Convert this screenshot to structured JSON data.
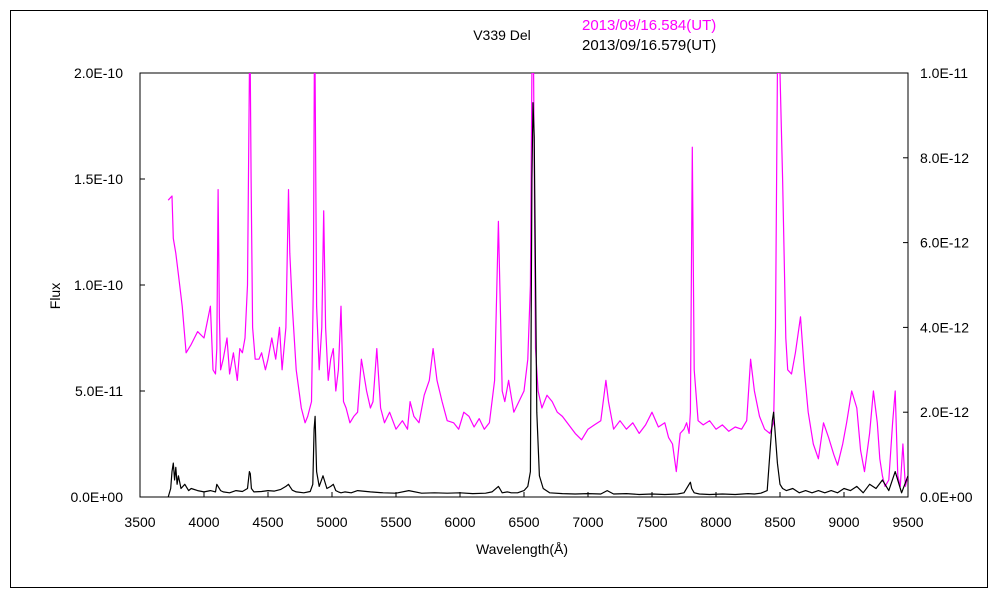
{
  "chart_data": {
    "type": "line",
    "title": "V339 Del",
    "xlabel": "Wavelength(Å)",
    "ylabel": "Flux",
    "xlim": [
      3500,
      9500
    ],
    "ylim_left": [
      0,
      2e-10
    ],
    "ylim_right": [
      0,
      1e-11
    ],
    "x_ticks": [
      "3500",
      "4000",
      "4500",
      "5000",
      "5500",
      "6000",
      "6500",
      "7000",
      "7500",
      "8000",
      "8500",
      "9000",
      "9500"
    ],
    "y_left_ticks": [
      "0.0E+00",
      "5.0E-11",
      "1.0E-10",
      "1.5E-10",
      "2.0E-10"
    ],
    "y_right_ticks": [
      "0.0E+00",
      "2.0E-12",
      "4.0E-12",
      "6.0E-12",
      "8.0E-12",
      "1.0E-11"
    ],
    "grid": false,
    "legend_position": "top",
    "series": [
      {
        "name": "2013/09/16.584(UT)",
        "axis": "left",
        "color": "#ff00ff",
        "x": [
          3720,
          3750,
          3760,
          3780,
          3800,
          3830,
          3860,
          3900,
          3950,
          4000,
          4050,
          4070,
          4090,
          4100,
          4110,
          4120,
          4130,
          4150,
          4180,
          4200,
          4230,
          4260,
          4280,
          4300,
          4320,
          4340,
          4355,
          4362,
          4368,
          4380,
          4400,
          4430,
          4450,
          4480,
          4500,
          4530,
          4560,
          4590,
          4610,
          4640,
          4660,
          4670,
          4690,
          4720,
          4760,
          4790,
          4810,
          4840,
          4855,
          4862,
          4868,
          4880,
          4900,
          4920,
          4935,
          4950,
          4970,
          4990,
          5010,
          5030,
          5050,
          5070,
          5090,
          5110,
          5140,
          5170,
          5200,
          5230,
          5270,
          5300,
          5320,
          5350,
          5380,
          5410,
          5450,
          5500,
          5550,
          5590,
          5610,
          5640,
          5680,
          5720,
          5760,
          5790,
          5820,
          5860,
          5900,
          5950,
          5990,
          6030,
          6070,
          6110,
          6150,
          6190,
          6230,
          6270,
          6300,
          6330,
          6350,
          6380,
          6420,
          6460,
          6500,
          6530,
          6550,
          6562,
          6575,
          6590,
          6610,
          6640,
          6680,
          6720,
          6760,
          6800,
          6850,
          6900,
          6950,
          7000,
          7050,
          7100,
          7140,
          7160,
          7200,
          7250,
          7300,
          7350,
          7400,
          7450,
          7500,
          7550,
          7600,
          7630,
          7660,
          7690,
          7720,
          7750,
          7770,
          7790,
          7800,
          7815,
          7830,
          7860,
          7900,
          7950,
          8000,
          8050,
          8100,
          8150,
          8200,
          8240,
          8270,
          8300,
          8340,
          8380,
          8420,
          8450,
          8465,
          8480,
          8500,
          8520,
          8545,
          8560,
          8590,
          8620,
          8660,
          8690,
          8720,
          8760,
          8800,
          8840,
          8880,
          8920,
          8950,
          8990,
          9020,
          9060,
          9100,
          9130,
          9160,
          9200,
          9230,
          9260,
          9280,
          9300,
          9320,
          9350,
          9380,
          9400,
          9420,
          9440,
          9460,
          9480,
          9500
        ],
        "y": [
          1.4e-10,
          1.42e-10,
          1.22e-10,
          1.15e-10,
          1.05e-10,
          9e-11,
          6.8e-11,
          7.2e-11,
          7.8e-11,
          7.5e-11,
          9e-11,
          6e-11,
          5.8e-11,
          7e-11,
          1.45e-10,
          8.5e-11,
          6e-11,
          6.5e-11,
          7.5e-11,
          5.8e-11,
          6.8e-11,
          5.5e-11,
          7e-11,
          6.8e-11,
          7.5e-11,
          1e-10,
          2e-10,
          2e-10,
          1.5e-10,
          8e-11,
          6.5e-11,
          6.5e-11,
          6.8e-11,
          6e-11,
          6.5e-11,
          7.5e-11,
          6.5e-11,
          8e-11,
          6e-11,
          8e-11,
          1.45e-10,
          1.15e-10,
          9e-11,
          6e-11,
          4.2e-11,
          3.5e-11,
          3.8e-11,
          4.5e-11,
          1e-10,
          2e-10,
          2e-10,
          9e-11,
          6e-11,
          8e-11,
          1.35e-10,
          8e-11,
          5.5e-11,
          6.5e-11,
          7e-11,
          5e-11,
          6e-11,
          9e-11,
          4.5e-11,
          4.2e-11,
          3.5e-11,
          3.8e-11,
          4e-11,
          6.5e-11,
          5e-11,
          4.2e-11,
          4.5e-11,
          7e-11,
          4.2e-11,
          3.5e-11,
          4e-11,
          3.2e-11,
          3.6e-11,
          3.2e-11,
          4.5e-11,
          3.8e-11,
          3.5e-11,
          4.8e-11,
          5.5e-11,
          7e-11,
          5.5e-11,
          4.5e-11,
          3.6e-11,
          3.5e-11,
          3.2e-11,
          4e-11,
          3.8e-11,
          3.3e-11,
          3.7e-11,
          3.2e-11,
          3.5e-11,
          5.5e-11,
          1.3e-10,
          5e-11,
          4.5e-11,
          5.5e-11,
          4e-11,
          4.5e-11,
          5e-11,
          6.5e-11,
          1e-10,
          2e-10,
          2e-10,
          7e-11,
          5e-11,
          4.2e-11,
          4.8e-11,
          4.5e-11,
          4e-11,
          3.8e-11,
          3.4e-11,
          3e-11,
          2.7e-11,
          3.2e-11,
          3.4e-11,
          3.6e-11,
          5.5e-11,
          4.5e-11,
          3.2e-11,
          3.6e-11,
          3.2e-11,
          3.5e-11,
          3e-11,
          3.4e-11,
          4e-11,
          3.3e-11,
          3.5e-11,
          2.8e-11,
          2.5e-11,
          1.2e-11,
          3e-11,
          3.2e-11,
          3.5e-11,
          3e-11,
          4e-11,
          1.65e-10,
          6e-11,
          3.6e-11,
          3.4e-11,
          3.6e-11,
          3.2e-11,
          3.4e-11,
          3.1e-11,
          3.3e-11,
          3.2e-11,
          3.6e-11,
          6.5e-11,
          5e-11,
          3.8e-11,
          3.2e-11,
          3e-11,
          3.5e-11,
          8e-11,
          2e-10,
          2e-10,
          1.5e-10,
          7.5e-11,
          6e-11,
          5.8e-11,
          6.8e-11,
          8.5e-11,
          6e-11,
          4e-11,
          2.5e-11,
          1.8e-11,
          3.5e-11,
          2.8e-11,
          2e-11,
          1.5e-11,
          2.5e-11,
          3.5e-11,
          5e-11,
          4.2e-11,
          2.2e-11,
          1.2e-11,
          3e-11,
          5e-11,
          3.5e-11,
          1.8e-11,
          1e-11,
          5e-12,
          8e-12,
          3.5e-11,
          5e-11,
          1e-11,
          5e-12,
          2.5e-11,
          5e-12,
          1e-11
        ]
      },
      {
        "name": "2013/09/16.579(UT)",
        "axis": "right",
        "color": "#000000",
        "x": [
          3720,
          3740,
          3750,
          3760,
          3770,
          3780,
          3790,
          3800,
          3820,
          3850,
          3880,
          3900,
          3950,
          4000,
          4050,
          4090,
          4100,
          4110,
          4130,
          4150,
          4200,
          4250,
          4300,
          4340,
          4355,
          4362,
          4370,
          4390,
          4450,
          4500,
          4550,
          4600,
          4640,
          4660,
          4670,
          4690,
          4720,
          4780,
          4830,
          4850,
          4860,
          4868,
          4880,
          4900,
          4930,
          4940,
          4960,
          4990,
          5010,
          5030,
          5050,
          5070,
          5100,
          5150,
          5200,
          5300,
          5400,
          5500,
          5600,
          5700,
          5800,
          5900,
          6000,
          6100,
          6200,
          6250,
          6300,
          6310,
          6330,
          6370,
          6400,
          6450,
          6500,
          6530,
          6550,
          6562,
          6570,
          6580,
          6600,
          6620,
          6650,
          6700,
          6800,
          6900,
          7000,
          7100,
          7150,
          7200,
          7300,
          7400,
          7500,
          7600,
          7700,
          7750,
          7790,
          7800,
          7810,
          7830,
          7870,
          7950,
          8050,
          8150,
          8250,
          8300,
          8350,
          8400,
          8420,
          8440,
          8450,
          8460,
          8480,
          8500,
          8520,
          8550,
          8600,
          8650,
          8700,
          8750,
          8800,
          8850,
          8900,
          8950,
          9000,
          9050,
          9100,
          9150,
          9200,
          9250,
          9300,
          9350,
          9400,
          9450,
          9500
        ],
        "y": [
          0.0,
          2e-13,
          6e-13,
          8e-13,
          4e-13,
          7e-13,
          3e-13,
          5e-13,
          2e-13,
          3e-13,
          1.5e-13,
          2e-13,
          1.5e-13,
          1.2e-13,
          1.5e-13,
          1.2e-13,
          3e-13,
          2.5e-13,
          1.5e-13,
          1.2e-13,
          1e-13,
          1.5e-13,
          1.3e-13,
          2e-13,
          6e-13,
          5.5e-13,
          2e-13,
          1.2e-13,
          1.3e-13,
          1.5e-13,
          1.4e-13,
          1.8e-13,
          2.5e-13,
          3e-13,
          2.5e-13,
          1.6e-13,
          1.2e-13,
          1e-13,
          1.3e-13,
          3e-13,
          1.6e-12,
          1.9e-12,
          6e-13,
          2.5e-13,
          5e-13,
          4e-13,
          2e-13,
          2.5e-13,
          3e-13,
          1.5e-13,
          1.2e-13,
          1e-13,
          1.2e-13,
          1e-13,
          1.5e-13,
          1.2e-13,
          1e-13,
          9e-14,
          1.5e-13,
          9e-14,
          1e-13,
          9e-14,
          1e-13,
          8e-14,
          9e-14,
          1.2e-13,
          2.5e-13,
          2e-13,
          1e-13,
          1.2e-13,
          1e-13,
          1e-13,
          1.5e-13,
          2.5e-13,
          6e-13,
          7.5e-12,
          9.3e-12,
          8.5e-12,
          2e-12,
          5e-13,
          2e-13,
          1e-13,
          8e-14,
          7e-14,
          8e-14,
          7e-14,
          1.5e-13,
          7e-14,
          8e-14,
          6e-14,
          7e-14,
          6e-14,
          7e-14,
          1e-13,
          3e-13,
          3.5e-13,
          2e-13,
          1e-13,
          7e-14,
          6e-14,
          7e-14,
          6e-14,
          8e-14,
          7e-14,
          9e-14,
          1.5e-13,
          1e-12,
          1.8e-12,
          2e-12,
          1.6e-12,
          8e-13,
          3e-13,
          2e-13,
          1.5e-13,
          2e-13,
          1e-13,
          1.5e-13,
          1e-13,
          1.5e-13,
          1e-13,
          1.5e-13,
          1e-13,
          2e-13,
          1.5e-13,
          2.5e-13,
          1e-13,
          3e-13,
          2e-13,
          4e-13,
          1.5e-13,
          6e-13,
          1e-13,
          5e-13
        ]
      }
    ]
  }
}
